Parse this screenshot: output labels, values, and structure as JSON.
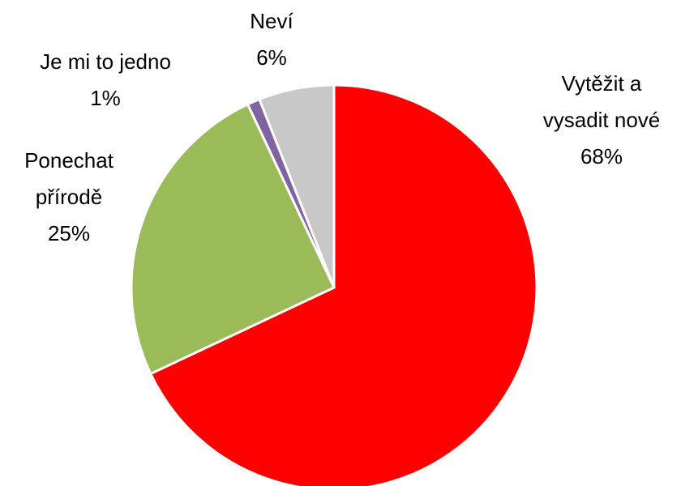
{
  "chart_data": {
    "type": "pie",
    "categories": [
      "Vytěžit a\nvysadit nové",
      "Ponechat\npřírodě",
      "Je mi to jedno",
      "Neví"
    ],
    "values": [
      68,
      25,
      1,
      6
    ],
    "value_labels": [
      "68%",
      "25%",
      "1%",
      "6%"
    ],
    "colors": [
      "#ff0000",
      "#9bbb59",
      "#8064a2",
      "#c8c8c8"
    ]
  }
}
